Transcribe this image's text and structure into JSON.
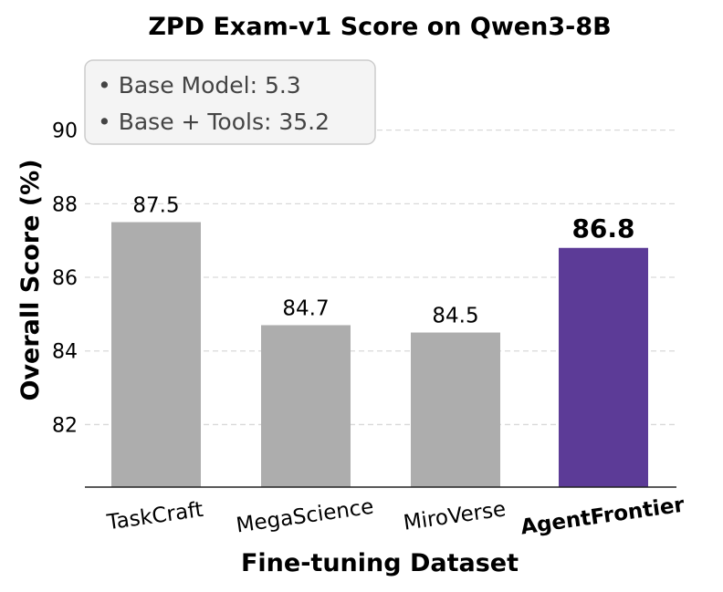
{
  "chart_data": {
    "type": "bar",
    "title": "ZPD Exam-v1 Score on Qwen3-8B",
    "xlabel": "Fine-tuning Dataset",
    "ylabel": "Overall Score (%)",
    "categories": [
      "TaskCraft",
      "MegaScience",
      "MiroVerse",
      "AgentFrontier"
    ],
    "values": [
      87.5,
      84.7,
      84.5,
      86.8
    ],
    "value_labels": [
      "87.5",
      "84.7",
      "84.5",
      "86.8"
    ],
    "highlight_category": "AgentFrontier",
    "ylim": [
      80.3,
      91.9
    ],
    "yticks": [
      82,
      84,
      86,
      88,
      90
    ],
    "ytick_labels": [
      "82",
      "84",
      "86",
      "88",
      "90"
    ],
    "grid": "horizontal dashed",
    "colors": {
      "default_bar": "#adadad",
      "highlight_bar": "#5c3b97",
      "grid": "#d9d9d9",
      "annotation_box_fill": "#f4f4f4",
      "annotation_box_border": "#cccccc",
      "annotation_text": "#444444"
    },
    "annotation": {
      "placement": "top-left",
      "lines": [
        "• Base Model: 5.3",
        "• Base + Tools: 35.2"
      ]
    }
  }
}
